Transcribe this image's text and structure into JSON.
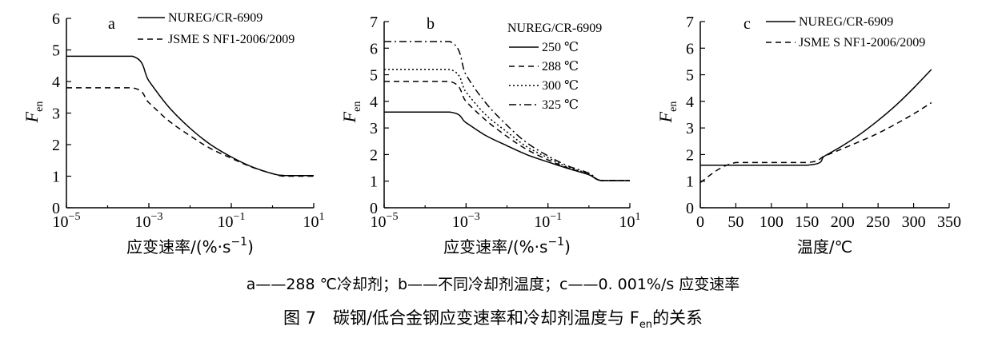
{
  "caption_sub": "a——288 ℃冷却剂；b——不同冷却剂温度；c——0. 001%/s 应变速率",
  "caption_main": "图 7　碳钢/低合金钢应变速率和冷却剂温度与 F",
  "caption_main_sub": "en",
  "caption_main_tail": "的关系",
  "chart_data": [
    {
      "id": "a",
      "type": "line",
      "panel_label": "a",
      "title": "",
      "xscale": "log",
      "xlabel": "应变速率/(%·s",
      "xlabel_sup": "−1",
      "xlabel_tail": ")",
      "ylabel": "F",
      "ylabel_sub": "en",
      "xlim": [
        1e-05,
        10
      ],
      "ylim": [
        0,
        6
      ],
      "xticks": [
        1e-05,
        0.001,
        0.1,
        10
      ],
      "xtick_labels": [
        {
          "base": "10",
          "exp": "−5"
        },
        {
          "base": "10",
          "exp": "−3"
        },
        {
          "base": "10",
          "exp": "−1"
        },
        {
          "base": "10",
          "exp": "1"
        }
      ],
      "yticks": [
        0,
        1,
        2,
        3,
        4,
        5,
        6
      ],
      "ytick_labels": [
        "0",
        "1",
        "2",
        "3",
        "4",
        "5",
        "6"
      ],
      "legend_position": "top-right",
      "legend_title": "",
      "series": [
        {
          "name": "NUREG/CR-6909",
          "style": "solid",
          "x": [
            1e-05,
            0.0004,
            0.001,
            0.003,
            0.01,
            0.03,
            0.1,
            0.3,
            1,
            2,
            10
          ],
          "y": [
            4.8,
            4.8,
            4.02,
            3.2,
            2.52,
            2.02,
            1.61,
            1.31,
            1.08,
            1.02,
            1.02
          ]
        },
        {
          "name": "JSME S NF1-2006/2009",
          "style": "dashed",
          "x": [
            1e-05,
            0.0004,
            0.001,
            0.003,
            0.01,
            0.03,
            0.1,
            0.3,
            1,
            2,
            10
          ],
          "y": [
            3.8,
            3.8,
            3.33,
            2.76,
            2.28,
            1.89,
            1.57,
            1.3,
            1.08,
            1.0,
            1.0
          ]
        }
      ]
    },
    {
      "id": "b",
      "type": "line",
      "panel_label": "b",
      "title": "",
      "xscale": "log",
      "xlabel": "应变速率/(%·s",
      "xlabel_sup": "−1",
      "xlabel_tail": ")",
      "ylabel": "F",
      "ylabel_sub": "en",
      "xlim": [
        1e-05,
        10
      ],
      "ylim": [
        0,
        7
      ],
      "xticks": [
        1e-05,
        0.001,
        0.1,
        10
      ],
      "xtick_labels": [
        {
          "base": "10",
          "exp": "−5"
        },
        {
          "base": "10",
          "exp": "−3"
        },
        {
          "base": "10",
          "exp": "−1"
        },
        {
          "base": "10",
          "exp": "1"
        }
      ],
      "yticks": [
        0,
        1,
        2,
        3,
        4,
        5,
        6,
        7
      ],
      "ytick_labels": [
        "0",
        "1",
        "2",
        "3",
        "4",
        "5",
        "6",
        "7"
      ],
      "legend_position": "top-right",
      "legend_title": "NUREG/CR-6909",
      "series": [
        {
          "name": "250 ℃",
          "style": "solid",
          "x": [
            1e-05,
            0.0004,
            0.001,
            0.003,
            0.01,
            0.03,
            0.1,
            0.3,
            1,
            2,
            10
          ],
          "y": [
            3.6,
            3.6,
            3.2,
            2.72,
            2.33,
            2.0,
            1.72,
            1.48,
            1.24,
            1.02,
            1.02
          ]
        },
        {
          "name": "288 ℃",
          "style": "dashed",
          "x": [
            1e-05,
            0.0004,
            0.001,
            0.003,
            0.01,
            0.03,
            0.1,
            0.3,
            1,
            2,
            10
          ],
          "y": [
            4.75,
            4.75,
            4.0,
            3.3,
            2.68,
            2.2,
            1.8,
            1.5,
            1.25,
            1.02,
            1.02
          ]
        },
        {
          "name": "300 ℃",
          "style": "dotted",
          "x": [
            1e-05,
            0.0004,
            0.001,
            0.003,
            0.01,
            0.03,
            0.1,
            0.3,
            1,
            2,
            10
          ],
          "y": [
            5.2,
            5.2,
            4.35,
            3.5,
            2.85,
            2.3,
            1.88,
            1.53,
            1.28,
            1.02,
            1.02
          ]
        },
        {
          "name": "325 ℃",
          "style": "dashdot",
          "x": [
            1e-05,
            0.0004,
            0.001,
            0.003,
            0.01,
            0.03,
            0.1,
            0.3,
            1,
            2,
            10
          ],
          "y": [
            6.25,
            6.25,
            5.0,
            3.95,
            3.1,
            2.45,
            1.95,
            1.58,
            1.3,
            1.02,
            1.02
          ]
        }
      ]
    },
    {
      "id": "c",
      "type": "line",
      "panel_label": "c",
      "title": "",
      "xscale": "linear",
      "xlabel": "温度/℃",
      "xlabel_sup": "",
      "xlabel_tail": "",
      "ylabel": "F",
      "ylabel_sub": "en",
      "xlim": [
        0,
        350
      ],
      "ylim": [
        0,
        7
      ],
      "xticks": [
        0,
        50,
        100,
        150,
        200,
        250,
        300,
        350
      ],
      "xtick_labels": [
        {
          "base": "0",
          "exp": ""
        },
        {
          "base": "50",
          "exp": ""
        },
        {
          "base": "100",
          "exp": ""
        },
        {
          "base": "150",
          "exp": ""
        },
        {
          "base": "200",
          "exp": ""
        },
        {
          "base": "250",
          "exp": ""
        },
        {
          "base": "300",
          "exp": ""
        },
        {
          "base": "350",
          "exp": ""
        }
      ],
      "yticks": [
        0,
        1,
        2,
        3,
        4,
        5,
        6,
        7
      ],
      "ytick_labels": [
        "0",
        "1",
        "2",
        "3",
        "4",
        "5",
        "6",
        "7"
      ],
      "legend_position": "top-right",
      "legend_title": "",
      "series": [
        {
          "name": "NUREG/CR-6909",
          "style": "solid",
          "x": [
            0,
            150,
            175,
            200,
            225,
            250,
            275,
            300,
            325
          ],
          "y": [
            1.6,
            1.6,
            1.95,
            2.33,
            2.77,
            3.28,
            3.85,
            4.5,
            5.2
          ]
        },
        {
          "name": "JSME S NF1-2006/2009",
          "style": "dashed",
          "x": [
            0,
            50,
            150,
            175,
            200,
            225,
            250,
            275,
            300,
            325
          ],
          "y": [
            0.95,
            1.7,
            1.7,
            1.95,
            2.22,
            2.5,
            2.8,
            3.15,
            3.53,
            3.95
          ]
        }
      ]
    }
  ]
}
